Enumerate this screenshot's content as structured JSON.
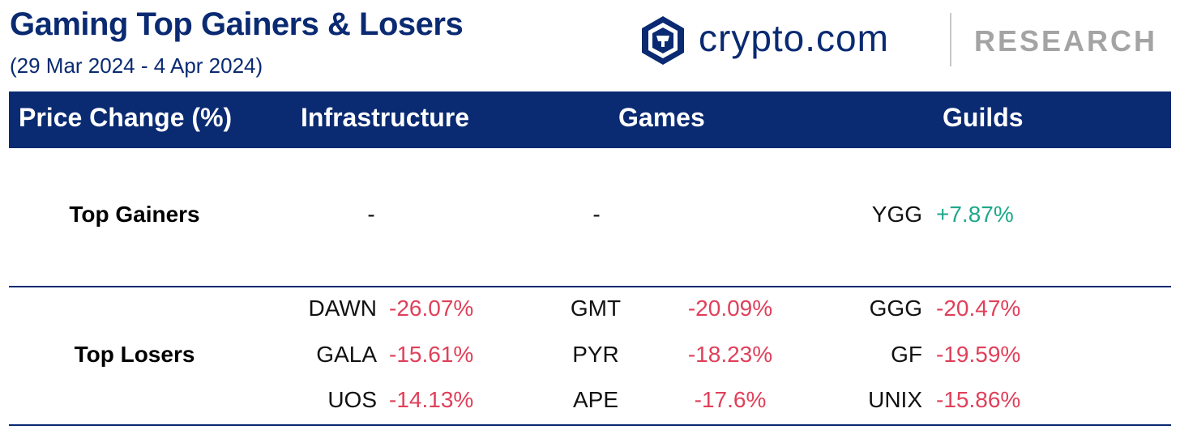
{
  "title": "Gaming Top Gainers & Losers",
  "subtitle": "(29 Mar 2024 - 4 Apr 2024)",
  "brand": {
    "name": "crypto.com",
    "division": "RESEARCH",
    "logo_icon": "crypto-com-lion-shield-icon"
  },
  "colors": {
    "navy": "#0a2a72",
    "gain": "#1ea78a",
    "loss": "#e0405a",
    "divider": "#c8c8c8",
    "research_grey": "#a4a4a4"
  },
  "table": {
    "header": {
      "label_col": "Price Change (%)",
      "infrastructure": "Infrastructure",
      "games": "Games",
      "guilds": "Guilds"
    },
    "top_gainers": {
      "label": "Top Gainers",
      "infrastructure": "-",
      "games": "-",
      "guilds": [
        {
          "ticker": "YGG",
          "change": "+7.87%"
        }
      ]
    },
    "top_losers": {
      "label": "Top Losers",
      "infrastructure": [
        {
          "ticker": "DAWN",
          "change": "-26.07%"
        },
        {
          "ticker": "GALA",
          "change": "-15.61%"
        },
        {
          "ticker": "UOS",
          "change": "-14.13%"
        }
      ],
      "games": [
        {
          "ticker": "GMT",
          "change": "-20.09%"
        },
        {
          "ticker": "PYR",
          "change": "-18.23%"
        },
        {
          "ticker": "APE",
          "change": "-17.6%"
        }
      ],
      "guilds": [
        {
          "ticker": "GGG",
          "change": "-20.47%"
        },
        {
          "ticker": "GF",
          "change": "-19.59%"
        },
        {
          "ticker": "UNIX",
          "change": "-15.86%"
        }
      ]
    }
  }
}
